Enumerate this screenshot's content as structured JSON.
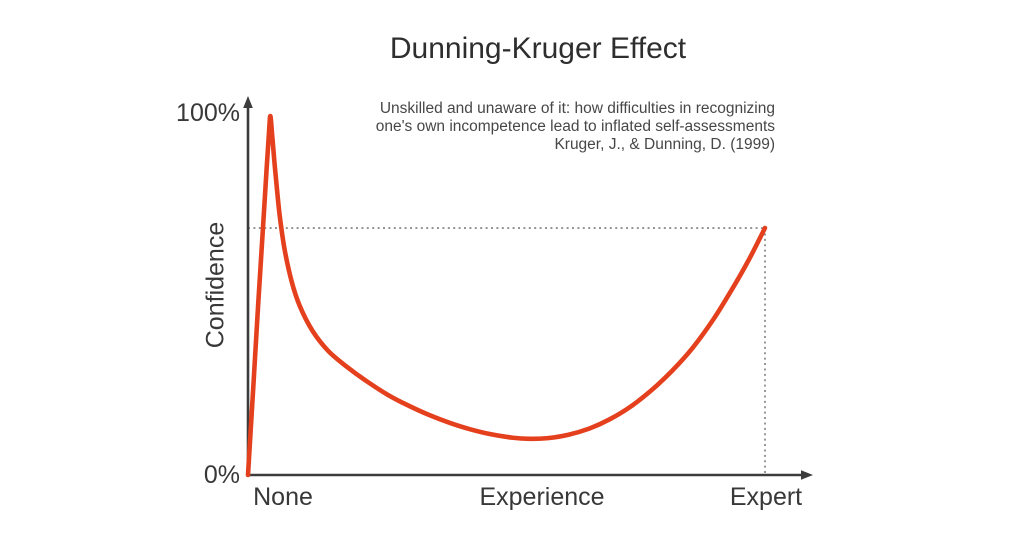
{
  "chart_data": {
    "type": "line",
    "title": "Dunning-Kruger Effect",
    "subtitle_lines": [
      "Unskilled and unaware of it: how difficulties in recognizing",
      "one's own incompetence lead to inflated self-assessments",
      "Kruger, J., & Dunning, D. (1999)"
    ],
    "ylabel": "Confidence",
    "xlabel": "",
    "y_ticks": [
      "100%",
      "0%"
    ],
    "x_ticks": [
      "None",
      "Experience",
      "Expert"
    ],
    "ylim": [
      0,
      100
    ],
    "xlim": [
      0,
      100
    ],
    "grid": false,
    "legend": null,
    "axes_arrows": true,
    "series": [
      {
        "name": "confidence",
        "color": "#e5401e",
        "points": [
          [
            0,
            0
          ],
          [
            1,
            24
          ],
          [
            2,
            48
          ],
          [
            3,
            71
          ],
          [
            3.6,
            85
          ],
          [
            4.1,
            96
          ],
          [
            4.35,
            99.6
          ],
          [
            4.75,
            93
          ],
          [
            5.3,
            84
          ],
          [
            6.1,
            72.5
          ],
          [
            7.1,
            62.5
          ],
          [
            8.5,
            53.5
          ],
          [
            10,
            47
          ],
          [
            12.5,
            40
          ],
          [
            15.5,
            34.5
          ],
          [
            19,
            30.2
          ],
          [
            23,
            26
          ],
          [
            27,
            22.3
          ],
          [
            31,
            19.3
          ],
          [
            35,
            16.7
          ],
          [
            39,
            14.5
          ],
          [
            43,
            12.7
          ],
          [
            47,
            11.3
          ],
          [
            51,
            10.4
          ],
          [
            54.5,
            10.05
          ],
          [
            58,
            10.25
          ],
          [
            62,
            11.2
          ],
          [
            66,
            12.9
          ],
          [
            70,
            15.5
          ],
          [
            74,
            19
          ],
          [
            78,
            23.5
          ],
          [
            82,
            28.9
          ],
          [
            86,
            35.3
          ],
          [
            90,
            43.2
          ],
          [
            93.5,
            51.3
          ],
          [
            96.8,
            59.6
          ],
          [
            100,
            68.6
          ]
        ],
        "peak": {
          "x": 4.35,
          "y": 99.6
        },
        "valley": {
          "x": 54.5,
          "y": 10
        },
        "end": {
          "x": 100,
          "y": 68.6
        }
      }
    ],
    "reference_lines": {
      "style": "dotted",
      "expert_point": {
        "x": 100,
        "y": 68.6
      }
    },
    "colors": {
      "curve": "#e5401e",
      "axis": "#3c3c3c",
      "reference_dotted": "#8e8e8e",
      "title": "#2e2e2e",
      "subtitle": "#474747",
      "tick_label": "#383838",
      "background": "#ffffff"
    }
  }
}
